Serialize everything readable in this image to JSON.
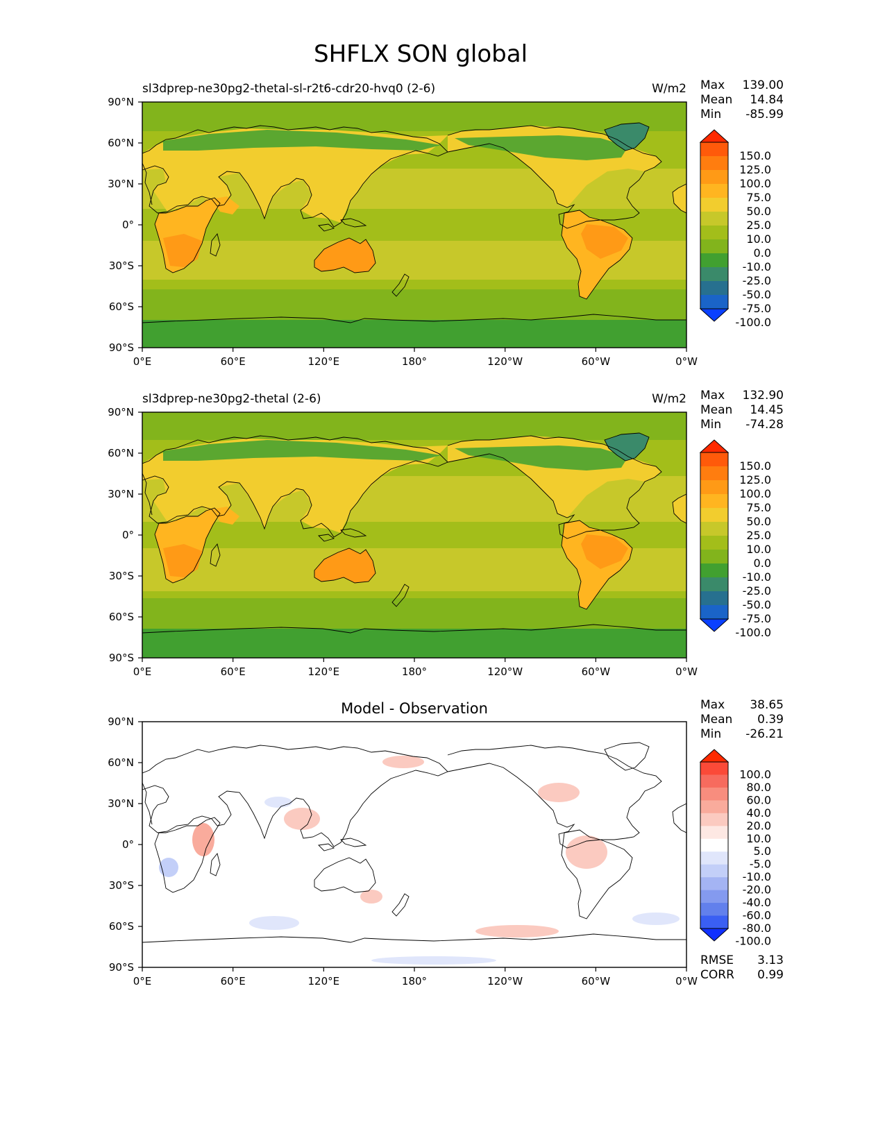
{
  "figure_title": "SHFLX SON global",
  "lat_ticks": [
    "90°N",
    "60°N",
    "30°N",
    "0°",
    "30°S",
    "60°S",
    "90°S"
  ],
  "lon_ticks": [
    "0°E",
    "60°E",
    "120°E",
    "180°",
    "120°W",
    "60°W",
    "0°W"
  ],
  "panels": [
    {
      "title": "sl3dprep-ne30pg2-thetal-sl-r2t6-cdr20-hvq0 (2-6)",
      "units": "W/m2",
      "stats": {
        "max_label": "Max",
        "max": "139.00",
        "mean_label": "Mean",
        "mean": "14.84",
        "min_label": "Min",
        "min": "-85.99"
      }
    },
    {
      "title": "sl3dprep-ne30pg2-thetal (2-6)",
      "units": "W/m2",
      "stats": {
        "max_label": "Max",
        "max": "132.90",
        "mean_label": "Mean",
        "mean": "14.45",
        "min_label": "Min",
        "min": "-74.28"
      }
    },
    {
      "title": "Model - Observation",
      "units": "",
      "stats": {
        "max_label": "Max",
        "max": "38.65",
        "mean_label": "Mean",
        "mean": "0.39",
        "min_label": "Min",
        "min": "-26.21"
      },
      "rmse_label": "RMSE",
      "rmse": "3.13",
      "corr_label": "CORR",
      "corr": "0.99"
    }
  ],
  "colorbar_field": {
    "labels": [
      "150.0",
      "125.0",
      "100.0",
      "75.0",
      "50.0",
      "25.0",
      "10.0",
      "0.0",
      "-10.0",
      "-25.0",
      "-50.0",
      "-75.0",
      "-100.0"
    ],
    "colors": [
      "#ff2a00",
      "#ff5a0a",
      "#ff7d0f",
      "#ff9a16",
      "#ffb520",
      "#f2cd2e",
      "#c7c82a",
      "#a3be1a",
      "#82b41c",
      "#41a030",
      "#3a8a6a",
      "#27708f",
      "#1a64c8",
      "#0a40ff"
    ]
  },
  "colorbar_diff": {
    "labels": [
      "100.0",
      "80.0",
      "60.0",
      "40.0",
      "20.0",
      "10.0",
      "5.0",
      "-5.0",
      "-10.0",
      "-20.0",
      "-40.0",
      "-60.0",
      "-80.0",
      "-100.0"
    ],
    "colors": [
      "#ff2a00",
      "#fb4a38",
      "#f76b5e",
      "#f88d7e",
      "#f9ab9c",
      "#fbcac0",
      "#fde8e3",
      "#ffffff",
      "#e0e6fb",
      "#c3cff8",
      "#a4b4f3",
      "#849aef",
      "#6280ec",
      "#3a5ff3",
      "#1030ff"
    ]
  },
  "field_colors": {
    "ice": "#41a030",
    "high_lat_ocean": "#82b41c",
    "ocean": "#a3be1a",
    "subtrop_ocean": "#c7c82a",
    "land_mid": "#f2cd2e",
    "land_hot": "#ffb520",
    "desert": "#ff9a16",
    "boreal": "#41a030",
    "greenland": "#3a8a6a"
  },
  "diff_colors": {
    "background": "#ffffff",
    "pos_light": "#fbcac0",
    "pos_mid": "#f9ab9c",
    "neg_light": "#e0e6fb",
    "neg_mid": "#c3cff8"
  }
}
